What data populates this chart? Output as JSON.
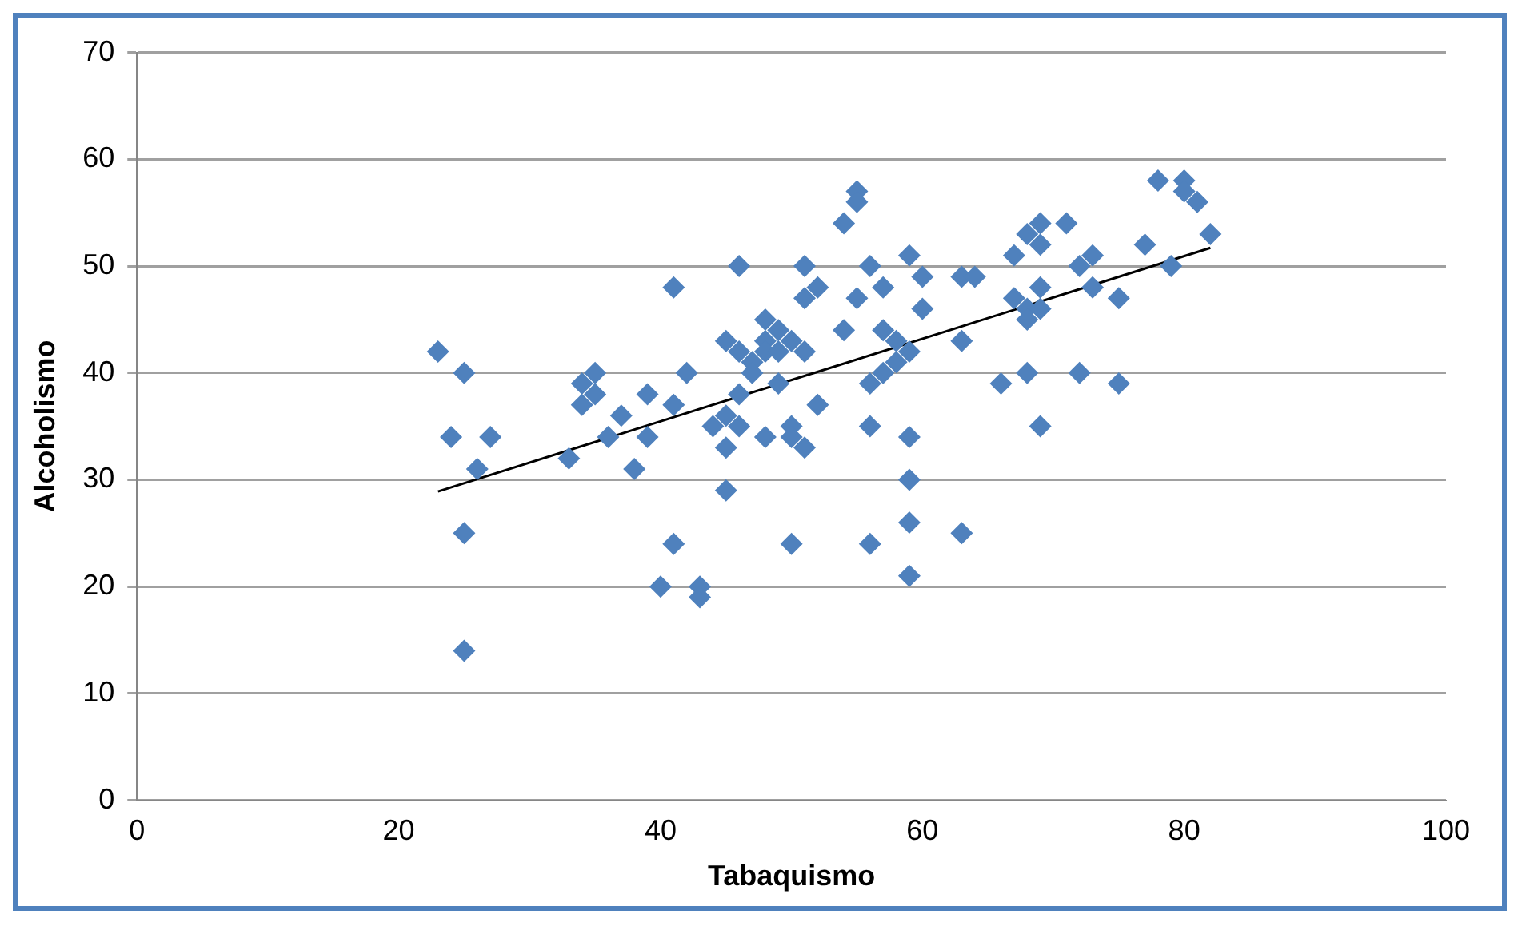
{
  "chart_data": {
    "type": "scatter",
    "xlabel": "Tabaquismo",
    "ylabel": "Alcoholismo",
    "xlim": [
      0,
      100
    ],
    "xticks": [
      0,
      20,
      40,
      60,
      80,
      100
    ],
    "ylim": [
      0,
      70
    ],
    "yticks": [
      0,
      10,
      20,
      30,
      40,
      50,
      60,
      70
    ],
    "grid": "y",
    "legend": false,
    "marker": "diamond",
    "series": [
      {
        "color": "#4f81bd",
        "x": [
          23,
          24,
          25,
          25,
          25,
          26,
          27,
          33,
          34,
          34,
          35,
          35,
          36,
          37,
          38,
          39,
          39,
          40,
          41,
          41,
          41,
          42,
          43,
          43,
          44,
          45,
          45,
          45,
          45,
          46,
          46,
          46,
          46,
          47,
          47,
          48,
          48,
          48,
          48,
          49,
          49,
          49,
          50,
          50,
          50,
          50,
          51,
          51,
          51,
          51,
          52,
          52,
          54,
          54,
          55,
          55,
          55,
          56,
          56,
          56,
          56,
          57,
          57,
          57,
          58,
          58,
          59,
          59,
          59,
          59,
          59,
          59,
          60,
          60,
          63,
          63,
          63,
          64,
          66,
          67,
          67,
          68,
          68,
          68,
          68,
          69,
          69,
          69,
          69,
          69,
          71,
          72,
          72,
          73,
          73,
          75,
          75,
          77,
          78,
          79,
          80,
          80,
          81,
          82
        ],
        "values": [
          42,
          34,
          40,
          25,
          14,
          31,
          34,
          32,
          37,
          39,
          40,
          38,
          34,
          36,
          31,
          38,
          34,
          20,
          48,
          37,
          24,
          40,
          20,
          19,
          35,
          43,
          36,
          33,
          29,
          50,
          42,
          38,
          35,
          41,
          40,
          45,
          43,
          42,
          34,
          44,
          39,
          42,
          43,
          35,
          34,
          24,
          50,
          47,
          42,
          33,
          48,
          37,
          54,
          44,
          57,
          56,
          47,
          50,
          39,
          35,
          24,
          48,
          44,
          40,
          43,
          41,
          51,
          42,
          34,
          30,
          26,
          21,
          49,
          46,
          49,
          43,
          25,
          49,
          39,
          51,
          47,
          53,
          46,
          45,
          40,
          54,
          52,
          48,
          46,
          35,
          54,
          50,
          40,
          51,
          48,
          47,
          39,
          52,
          58,
          50,
          58,
          57,
          56,
          53
        ]
      },
      {
        "type": "line",
        "color": "#000000",
        "marker": "none",
        "x": [
          23,
          82
        ],
        "values": [
          28.9,
          51.7
        ]
      }
    ]
  }
}
